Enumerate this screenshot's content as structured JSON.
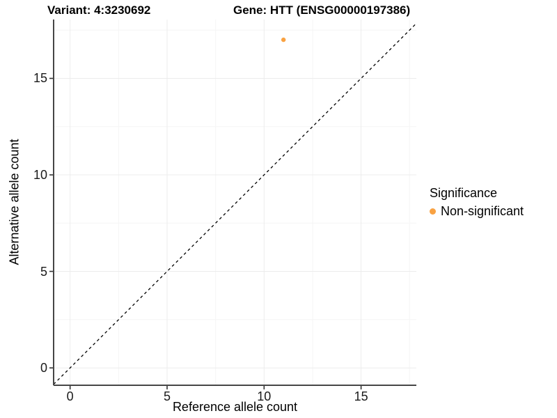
{
  "titles": {
    "variant": "Variant: 4:3230692",
    "gene": "Gene: HTT (ENSG00000197386)"
  },
  "chart_data": {
    "type": "scatter",
    "xlabel": "Reference allele count",
    "ylabel": "Alternative allele count",
    "xlim": [
      -0.85,
      17.85
    ],
    "ylim": [
      -0.9,
      18.05
    ],
    "x_ticks": [
      0,
      5,
      10,
      15
    ],
    "y_ticks": [
      0,
      5,
      10,
      15
    ],
    "x_minor_ticks": [
      2.5,
      7.5,
      12.5,
      17.5
    ],
    "y_minor_ticks": [
      2.5,
      7.5,
      12.5,
      17.5
    ],
    "grid": true,
    "points": [
      {
        "x": 11,
        "y": 17,
        "series": "Non-significant",
        "color": "#F9A242"
      }
    ],
    "reference_line": {
      "type": "identity",
      "slope": 1,
      "intercept": 0,
      "style": "dashed",
      "color": "#000000"
    },
    "legend": {
      "title": "Significance",
      "position": "right",
      "items": [
        {
          "label": "Non-significant",
          "color": "#F9A242"
        }
      ]
    },
    "colors": {
      "axis_line": "#464646",
      "tick_mark": "#333333",
      "grid_major": "#ececec",
      "grid_minor": "#f5f5f5",
      "background": "#ffffff"
    }
  }
}
